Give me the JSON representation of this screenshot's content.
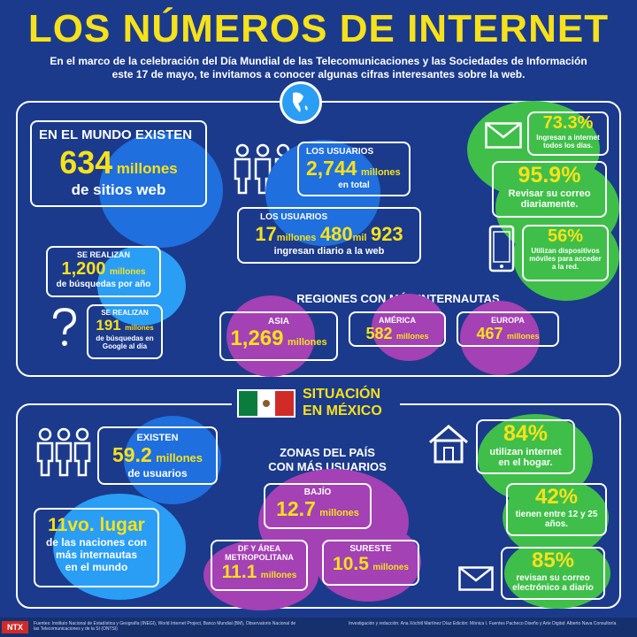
{
  "header": {
    "title": "LOS NÚMEROS DE INTERNET",
    "subtitle_line1": "En el marco de la celebración del Día Mundial de las Telecomunicaciones y las Sociedades de Información",
    "subtitle_line2": "este 17 de mayo, te invitamos a conocer algunas cifras interesantes sobre la web."
  },
  "world": {
    "sites_heading": "EN EL MUNDO EXISTEN",
    "sites_number": "634",
    "sites_unit": "millones",
    "sites_label": "de sitios web",
    "users_heading": "LOS USUARIOS",
    "users_number": "2,744",
    "users_unit": "millones",
    "users_label": "en total",
    "daily_heading": "LOS USUARIOS",
    "daily_n1": "17",
    "daily_u1": "millones",
    "daily_n2": "480",
    "daily_u2": "mil",
    "daily_n3": "923",
    "daily_label": "ingresan diario a la web",
    "searches_heading": "SE REALIZAN",
    "searches_number": "1,200",
    "searches_unit": "millones",
    "searches_label": "de búsquedas por año",
    "google_heading": "SE REALIZAN",
    "google_number": "191",
    "google_unit": "millones",
    "google_label1": "de búsquedas en",
    "google_label2": "Google al día",
    "stat1_value": "73.3%",
    "stat1_label1": "Ingresan a internet",
    "stat1_label2": "todos los días.",
    "stat2_value": "95.9%",
    "stat2_label1": "Revisar su correo",
    "stat2_label2": "diariamente.",
    "stat3_value": "56%",
    "stat3_label1": "Utilizan dispositivos",
    "stat3_label2": "móviles para acceder",
    "stat3_label3": "a la red.",
    "regions_heading": "REGIONES CON MÁS INTERNAUTAS",
    "regions": [
      {
        "name": "ASIA",
        "value": "1,269",
        "unit": "millones"
      },
      {
        "name": "AMÉRICA",
        "value": "582",
        "unit": "millones"
      },
      {
        "name": "EUROPA",
        "value": "467",
        "unit": "millones"
      }
    ]
  },
  "mexico": {
    "heading_line1": "SITUACIÓN",
    "heading_line2": "EN MÉXICO",
    "users_heading": "EXISTEN",
    "users_number": "59.2",
    "users_unit": "millones",
    "users_label": "de usuarios",
    "rank_value": "11vo. lugar",
    "rank_label1": "de las naciones con",
    "rank_label2": "más internautas",
    "rank_label3": "en el mundo",
    "zones_heading1": "ZONAS DEL PAÍS",
    "zones_heading2": "CON MÁS USUARIOS",
    "zones": [
      {
        "name": "BAJÍO",
        "value": "12.7",
        "unit": "millones"
      },
      {
        "name": "DF Y ÁREA METROPOLITANA",
        "value": "11.1",
        "unit": "millones"
      },
      {
        "name": "SURESTE",
        "value": "10.5",
        "unit": "millones"
      }
    ],
    "stat1_value": "84%",
    "stat1_label1": "utilizan internet",
    "stat1_label2": "en el hogar.",
    "stat2_value": "42%",
    "stat2_label1": "tienen entre 12 y 25",
    "stat2_label2": "años.",
    "stat3_value": "85%",
    "stat3_label1": "revisan su correo",
    "stat3_label2": "electrónico a diario"
  },
  "footer": {
    "logo": "NTX",
    "sources": "Fuentes: Instituto Nacional de Estadística y Geografía (INEGI), World Internet Project, Banco Mundial (BM), Observatorio Nacional de las Telecomunicaciones y de la SI (ONTSI)",
    "credits": "Investigación y redacción: Ana Xóchitl Martínez Díaz Edición: Mónica I. Fuentes Pacheco Diseño y Arte Digital: Alberto Nava Consultoría"
  },
  "colors": {
    "background": "#1b3a8c",
    "accent": "#f6e11a",
    "blue_circle": "#1f6fde",
    "light_blue_circle": "#2a9ef5",
    "green_circle": "#3fbf4a",
    "purple_circle": "#a441b4"
  }
}
